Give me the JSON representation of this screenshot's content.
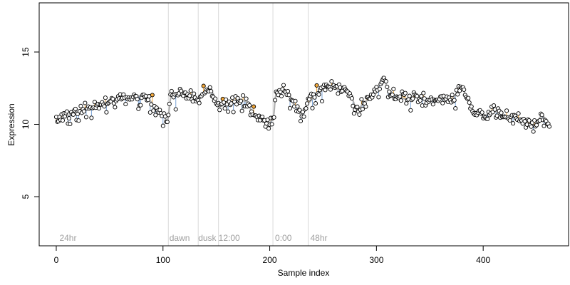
{
  "chart_data": {
    "type": "scatter",
    "title": "",
    "xlabel": "Sample index",
    "ylabel": "Expression",
    "xlim": [
      -16,
      480
    ],
    "ylim": [
      1.6,
      18.4
    ],
    "x_ticks": [
      0,
      100,
      200,
      300,
      400
    ],
    "y_ticks": [
      5,
      10,
      15
    ],
    "grid": false,
    "legend": "none",
    "condition_boundaries": [
      105,
      133,
      152,
      203,
      236
    ],
    "condition_labels": [
      {
        "x": 3,
        "label": "24hr"
      },
      {
        "x": 106,
        "label": "dawn"
      },
      {
        "x": 133,
        "label": "dusk"
      },
      {
        "x": 152,
        "label": "12:00"
      },
      {
        "x": 205,
        "label": "0:00"
      },
      {
        "x": 238,
        "label": "48hr"
      }
    ],
    "colors": {
      "point_fill_low": "#ffffff",
      "point_fill_high": "#f4a93b",
      "point_stroke": "#000000",
      "segment_below": "#7aa3d6",
      "segment_above": "#f4a93b",
      "smooth_line": "#b0b0b0",
      "condition_line": "#d9d9d9",
      "condition_label": "#9e9e9e"
    },
    "anchors": [
      [
        0,
        10.3
      ],
      [
        10,
        10.6
      ],
      [
        20,
        10.9
      ],
      [
        30,
        11.1
      ],
      [
        40,
        11.3
      ],
      [
        50,
        11.6
      ],
      [
        60,
        11.9
      ],
      [
        70,
        11.8
      ],
      [
        80,
        12.0
      ],
      [
        88,
        11.6
      ],
      [
        94,
        11.0
      ],
      [
        100,
        10.6
      ],
      [
        104,
        10.2
      ],
      [
        108,
        12.1
      ],
      [
        115,
        12.2
      ],
      [
        125,
        11.9
      ],
      [
        133,
        11.8
      ],
      [
        140,
        12.3
      ],
      [
        146,
        12.2
      ],
      [
        152,
        11.2
      ],
      [
        160,
        11.4
      ],
      [
        170,
        11.7
      ],
      [
        178,
        11.6
      ],
      [
        185,
        10.7
      ],
      [
        192,
        10.4
      ],
      [
        198,
        10.0
      ],
      [
        203,
        10.3
      ],
      [
        206,
        12.2
      ],
      [
        212,
        12.4
      ],
      [
        218,
        12.0
      ],
      [
        224,
        11.3
      ],
      [
        230,
        10.6
      ],
      [
        236,
        11.5
      ],
      [
        245,
        12.2
      ],
      [
        255,
        12.6
      ],
      [
        265,
        12.4
      ],
      [
        275,
        12.1
      ],
      [
        282,
        11.0
      ],
      [
        290,
        11.6
      ],
      [
        300,
        12.4
      ],
      [
        306,
        13.3
      ],
      [
        312,
        12.3
      ],
      [
        320,
        11.9
      ],
      [
        330,
        11.7
      ],
      [
        340,
        11.9
      ],
      [
        350,
        11.6
      ],
      [
        360,
        11.8
      ],
      [
        370,
        11.7
      ],
      [
        380,
        12.6
      ],
      [
        385,
        11.8
      ],
      [
        392,
        10.9
      ],
      [
        400,
        10.6
      ],
      [
        410,
        10.9
      ],
      [
        420,
        10.6
      ],
      [
        430,
        10.5
      ],
      [
        440,
        10.1
      ],
      [
        448,
        9.9
      ],
      [
        455,
        10.6
      ],
      [
        462,
        10.1
      ]
    ]
  }
}
